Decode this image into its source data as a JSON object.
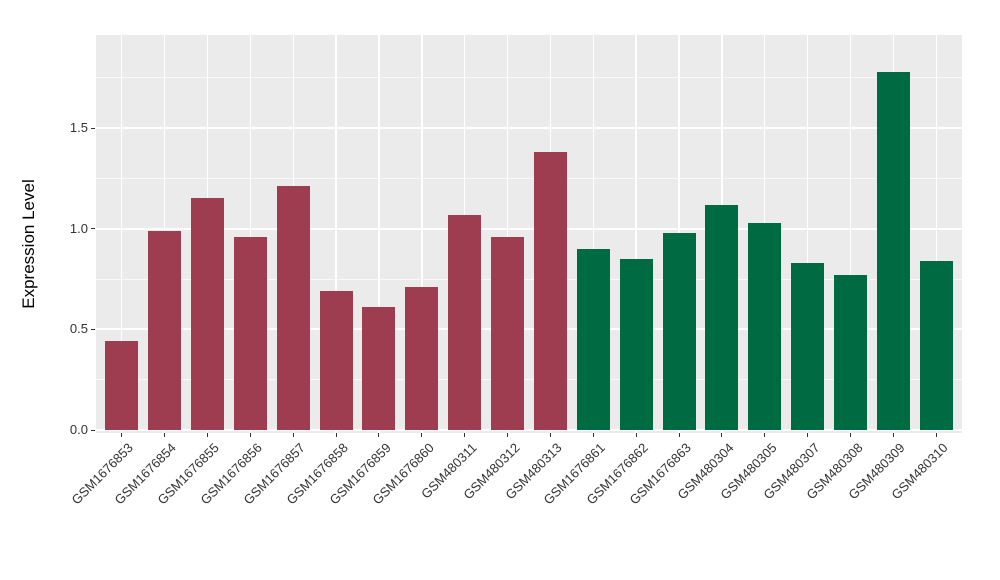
{
  "chart_data": {
    "type": "bar",
    "title": "",
    "xlabel": "",
    "ylabel": "Expression Level",
    "ylim": [
      0,
      1.96
    ],
    "y_ticks": [
      0.0,
      0.5,
      1.0,
      1.5
    ],
    "y_tick_labels": [
      "0.0",
      "0.5",
      "1.0",
      "1.5"
    ],
    "y_minor_ticks": [
      0.25,
      0.75,
      1.25,
      1.75
    ],
    "grid": true,
    "legend": "none",
    "categories": [
      "GSM1676853",
      "GSM1676854",
      "GSM1676855",
      "GSM1676856",
      "GSM1676857",
      "GSM1676858",
      "GSM1676859",
      "GSM1676860",
      "GSM480311",
      "GSM480312",
      "GSM480313",
      "GSM1676861",
      "GSM1676862",
      "GSM1676863",
      "GSM480304",
      "GSM480305",
      "GSM480307",
      "GSM480308",
      "GSM480309",
      "GSM480310"
    ],
    "values": [
      0.44,
      0.99,
      1.15,
      0.96,
      1.21,
      0.69,
      0.61,
      0.71,
      1.07,
      0.96,
      1.38,
      0.9,
      0.85,
      0.98,
      1.12,
      1.03,
      0.83,
      0.77,
      1.78,
      0.84
    ],
    "groups": [
      "group1",
      "group1",
      "group1",
      "group1",
      "group1",
      "group1",
      "group1",
      "group1",
      "group1",
      "group1",
      "group1",
      "group2",
      "group2",
      "group2",
      "group2",
      "group2",
      "group2",
      "group2",
      "group2",
      "group2"
    ],
    "group_colors": {
      "group1": "#9e3d4f",
      "group2": "#006b43"
    },
    "panel_background": "#ebebeb",
    "grid_color": "#ffffff",
    "axis_text_color": "#333333"
  }
}
